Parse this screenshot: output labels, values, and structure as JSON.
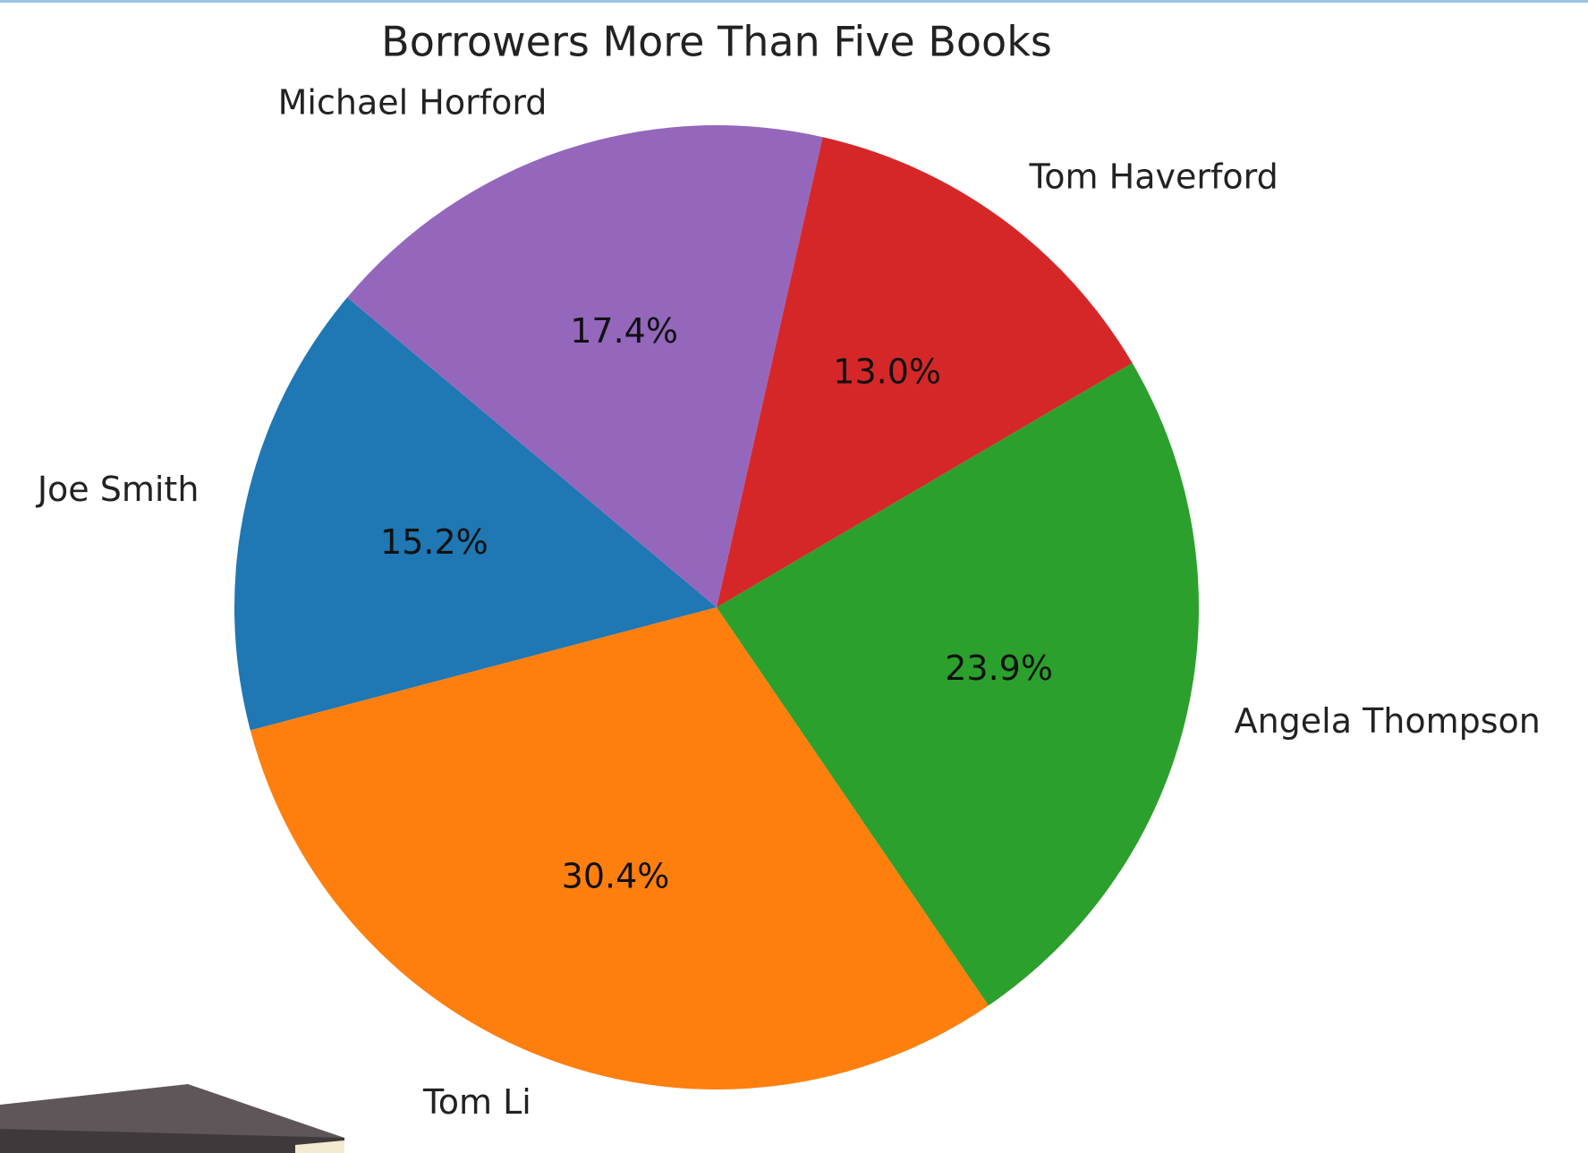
{
  "chart_data": {
    "type": "pie",
    "title": "Borrowers More Than Five Books",
    "categories": [
      "Joe Smith",
      "Tom Li",
      "Angela Thompson",
      "Tom Haverford",
      "Michael Horford"
    ],
    "values": [
      15.2,
      30.4,
      23.9,
      13.0,
      17.4
    ],
    "value_labels": [
      "15.2%",
      "30.4%",
      "23.9%",
      "13.0%",
      "17.4%"
    ],
    "colors": [
      "#1f77b4",
      "#ff7f0e",
      "#2ca02c",
      "#d62728",
      "#9467bd"
    ]
  }
}
